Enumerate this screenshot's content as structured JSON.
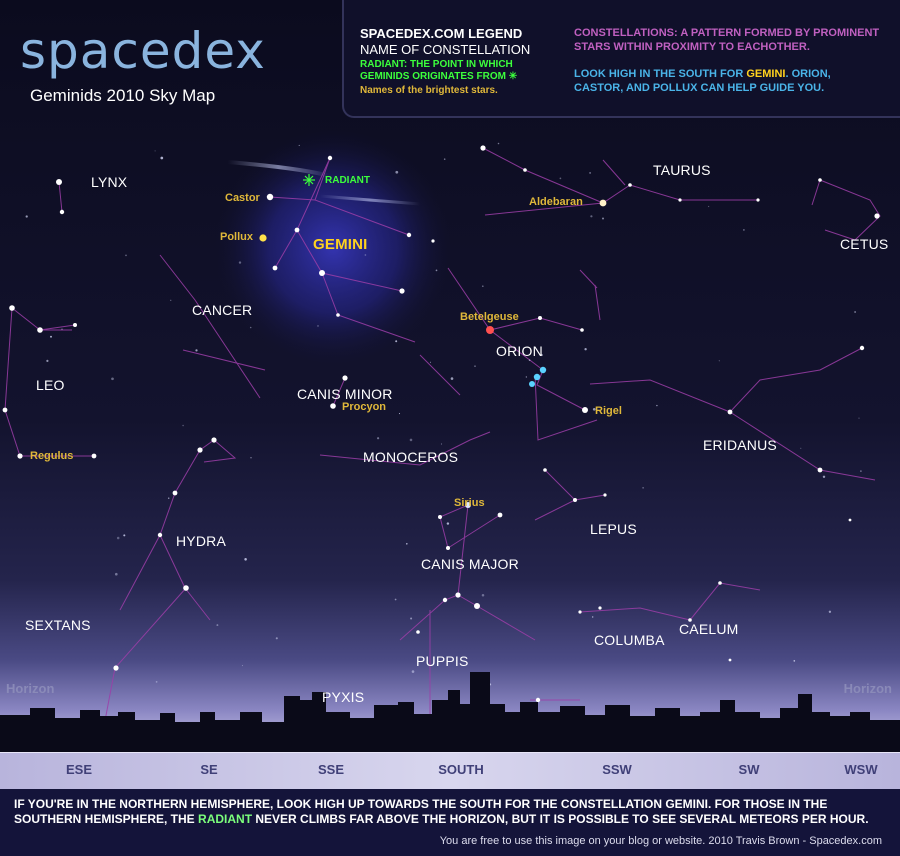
{
  "title": {
    "logo": "spacedex",
    "subtitle": "Geminids 2010 Sky Map"
  },
  "legend": {
    "title": "SPACEDEX.COM LEGEND",
    "name_of_constellation": "NAME OF CONSTELLATION",
    "radiant_line1": "RADIANT: THE POINT IN WHICH",
    "radiant_line2": "GEMINIDS ORIGINATES FROM",
    "brightest_stars": "Names of the brightest stars.",
    "constellations_line1": "CONSTELLATIONS: A PATTERN FORMED BY PROMINENT",
    "constellations_line2": "STARS WITHIN PROXIMITY TO EACHOTHER.",
    "look_pre": "LOOK HIGH IN THE SOUTH FOR ",
    "look_gemini": "GEMINI",
    "look_post": ". ORION,",
    "look_line2": "CASTOR, AND POLLUX CAN HELP GUIDE YOU."
  },
  "constellations": {
    "lynx": "LYNX",
    "gemini": "GEMINI",
    "taurus": "TAURUS",
    "cetus": "CETUS",
    "cancer": "CANCER",
    "leo": "LEO",
    "canis_minor": "CANIS MINOR",
    "orion": "ORION",
    "eridanus": "ERIDANUS",
    "monoceros": "MONOCEROS",
    "hydra": "HYDRA",
    "lepus": "LEPUS",
    "canis_major": "CANIS MAJOR",
    "sextans": "SEXTANS",
    "caelum": "CAELUM",
    "columba": "COLUMBA",
    "puppis": "PUPPIS",
    "pyxis": "PYXIS"
  },
  "stars": {
    "castor": "Castor",
    "pollux": "Pollux",
    "aldebaran": "Aldebaran",
    "betelgeuse": "Betelgeuse",
    "procyon": "Procyon",
    "rigel": "Rigel",
    "regulus": "Regulus",
    "sirius": "Sirius"
  },
  "radiant": "RADIANT",
  "horizon": {
    "left": "Horizon",
    "right": "Horizon"
  },
  "directions": [
    "ESE",
    "SE",
    "SSE",
    "SOUTH",
    "SSW",
    "SW",
    "WSW"
  ],
  "footer": {
    "line1": "IF YOU'RE IN THE NORTHERN HEMISPHERE, LOOK HIGH UP TOWARDS THE SOUTH FOR THE CONSTELLATION GEMINI. FOR THOSE IN THE",
    "line2_pre": "SOUTHERN HEMISPHERE, THE ",
    "line2_radiant": "RADIANT",
    "line2_post": " NEVER CLIMBS FAR ABOVE THE HORIZON, BUT IT IS POSSIBLE TO SEE SEVERAL METEORS PER HOUR.",
    "credit": "You are free to use this image on your blog or website.  2010 Travis Brown - Spacedex.com"
  },
  "colors": {
    "constellation_line": "#9c3ea8",
    "star_label": "#e0b83a",
    "gemini_label": "#ffd21e",
    "radiant": "#3cff3c",
    "legend_constellations": "#c060c0",
    "legend_look": "#4ab4e8",
    "betelgeuse": "#ff5050",
    "orion_belt": "#5ad2ff",
    "footer_background": "#14143a"
  }
}
